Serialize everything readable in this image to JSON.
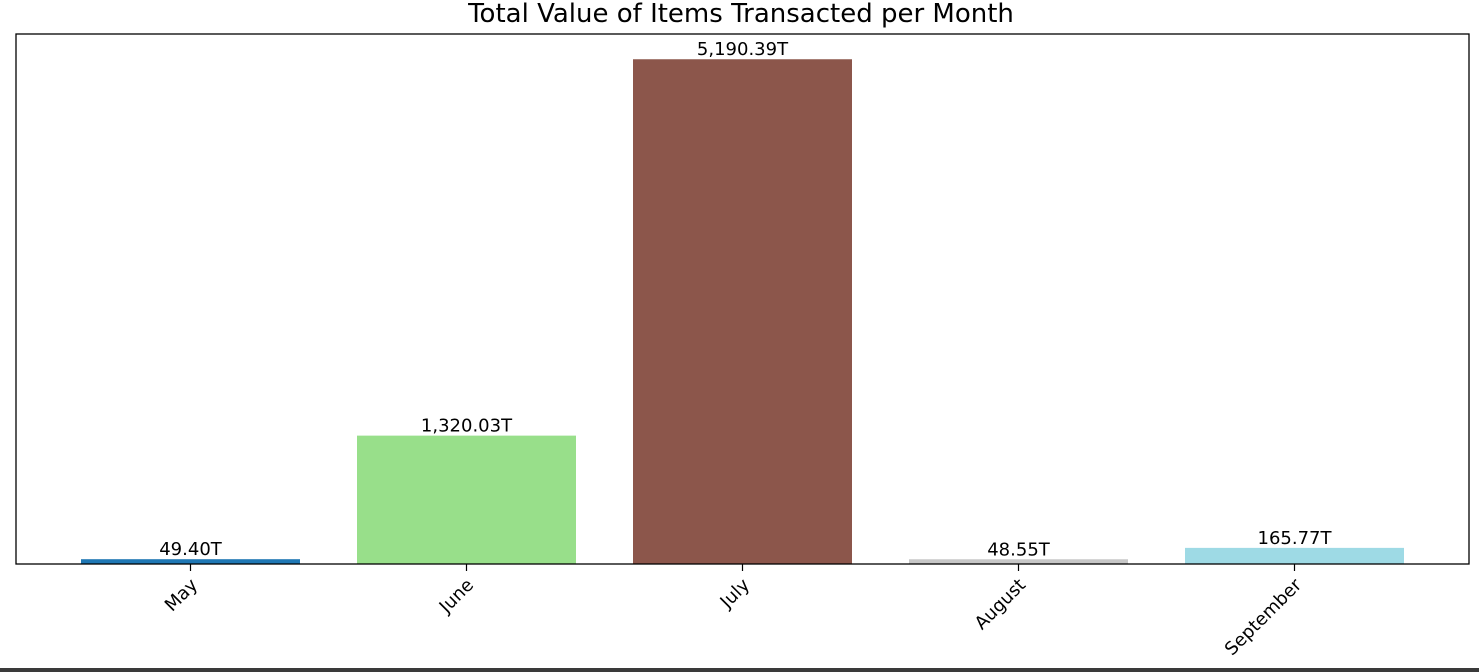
{
  "chart_data": {
    "type": "bar",
    "title": "Total Value of Items Transacted per Month",
    "xlabel": "",
    "ylabel": "",
    "categories": [
      "May",
      "June",
      "July",
      "August",
      "September"
    ],
    "values": [
      49.4,
      1320.03,
      5190.39,
      48.55,
      165.77
    ],
    "value_labels": [
      "49.40T",
      "1,320.03T",
      "5,190.39T",
      "48.55T",
      "165.77T"
    ],
    "value_unit": "T",
    "colors": [
      "#1f77b4",
      "#98df8a",
      "#8c564b",
      "#c7c7c7",
      "#9edae5"
    ],
    "ylim": [
      0,
      5450
    ],
    "y_axis_visible": false,
    "grid": false,
    "legend": "none",
    "tick_rotation_degrees": 45
  }
}
